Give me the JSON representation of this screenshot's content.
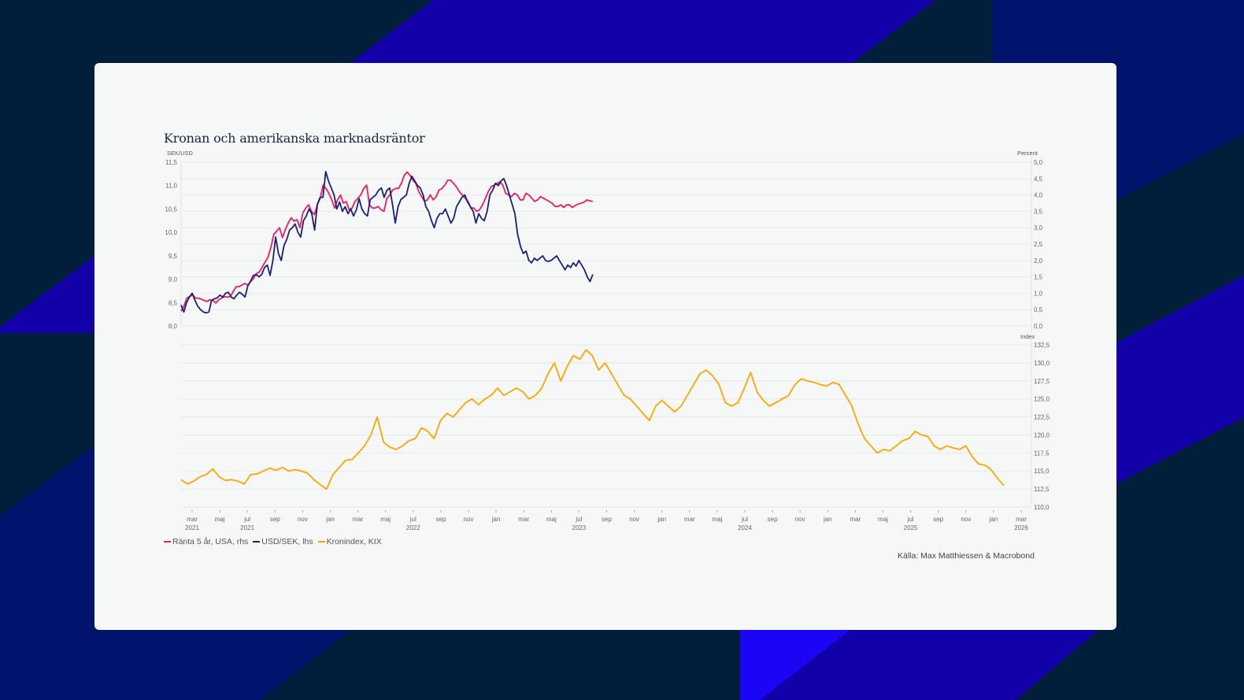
{
  "colors": {
    "background": "#011e3a",
    "band_violet": "#1200a8",
    "band_navy": "#02136e",
    "band_bright": "#1a05f5",
    "card": "#f6f8f8",
    "gridline": "#e6e9ea"
  },
  "chart_data": [
    {
      "type": "line",
      "panel": "top",
      "title": "Kronan och amerikanska marknadsräntor",
      "ylabel_left": "SEK/USD",
      "ylabel_right": "Percent",
      "ylim_left": [
        8.0,
        11.5
      ],
      "ylim_right": [
        0.0,
        5.0
      ],
      "yticks_left": [
        "8,0",
        "8,5",
        "9,0",
        "9,5",
        "10,0",
        "10,5",
        "11,0",
        "11,5"
      ],
      "yticks_right": [
        "0,0",
        "0,5",
        "1,0",
        "1,5",
        "2,0",
        "2,5",
        "3,0",
        "3,5",
        "4,0",
        "4,5",
        "5,0"
      ],
      "grid": true,
      "x_start": "2021-02",
      "x_step_months": 0.5,
      "series": [
        {
          "name": "USD/SEK, lhs",
          "axis": "left",
          "color": "#1a1f7a",
          "values": [
            8.45,
            8.3,
            8.5,
            8.62,
            8.7,
            8.55,
            8.42,
            8.35,
            8.3,
            8.28,
            8.3,
            8.55,
            8.58,
            8.6,
            8.66,
            8.62,
            8.7,
            8.72,
            8.62,
            8.58,
            8.66,
            8.72,
            8.68,
            8.62,
            8.86,
            8.96,
            9.08,
            9.1,
            9.05,
            9.1,
            9.25,
            9.3,
            9.08,
            9.4,
            9.9,
            9.55,
            9.4,
            9.72,
            9.85,
            10.05,
            10.1,
            10.18,
            10.0,
            9.9,
            10.25,
            10.35,
            10.5,
            10.4,
            10.05,
            10.6,
            10.75,
            10.75,
            11.3,
            11.1,
            10.95,
            10.8,
            10.5,
            10.65,
            10.45,
            10.55,
            10.4,
            10.5,
            10.35,
            10.48,
            10.72,
            10.5,
            10.4,
            10.35,
            10.7,
            10.75,
            10.8,
            10.9,
            10.95,
            10.75,
            10.9,
            10.95,
            10.6,
            10.2,
            10.55,
            10.7,
            10.75,
            10.8,
            11.05,
            11.2,
            11.1,
            11.0,
            10.95,
            10.8,
            10.55,
            10.45,
            10.25,
            10.1,
            10.3,
            10.4,
            10.4,
            10.5,
            10.35,
            10.2,
            10.3,
            10.55,
            10.65,
            10.75,
            10.8,
            10.65,
            10.55,
            10.45,
            10.2,
            10.4,
            10.3,
            10.25,
            10.45,
            10.8,
            10.9,
            11.05,
            11.0,
            11.1,
            11.15,
            11.0,
            10.8,
            10.6,
            10.4,
            9.95,
            9.7,
            9.55,
            9.6,
            9.4,
            9.35,
            9.45,
            9.4,
            9.45,
            9.5,
            9.4,
            9.38,
            9.4,
            9.45,
            9.5,
            9.4,
            9.3,
            9.2,
            9.3,
            9.25,
            9.35,
            9.28,
            9.4,
            9.3,
            9.2,
            9.05,
            8.95,
            9.1
          ]
        },
        {
          "name": "Ränta 5 år, USA, rhs",
          "axis": "right",
          "color": "#ee1a62",
          "values": [
            0.45,
            0.6,
            0.85,
            0.9,
            0.95,
            0.85,
            0.85,
            0.82,
            0.78,
            0.75,
            0.8,
            0.78,
            0.7,
            0.8,
            0.85,
            0.9,
            0.88,
            0.9,
            1.05,
            1.2,
            1.2,
            1.25,
            1.3,
            1.25,
            1.35,
            1.45,
            1.6,
            1.65,
            1.8,
            1.95,
            2.1,
            2.4,
            2.8,
            2.9,
            3.0,
            2.7,
            2.95,
            3.15,
            3.3,
            3.2,
            3.25,
            3.0,
            3.45,
            3.6,
            3.7,
            3.5,
            3.4,
            3.7,
            3.9,
            4.3,
            4.2,
            4.05,
            3.85,
            3.6,
            3.85,
            4.0,
            3.75,
            3.8,
            3.55,
            3.6,
            3.8,
            3.9,
            4.0,
            4.2,
            4.3,
            3.7,
            3.6,
            3.6,
            3.65,
            3.55,
            3.5,
            3.9,
            4.0,
            4.15,
            4.2,
            4.2,
            4.35,
            4.6,
            4.7,
            4.6,
            4.45,
            4.35,
            4.1,
            3.95,
            3.8,
            3.85,
            4.0,
            3.85,
            3.95,
            4.15,
            4.2,
            4.3,
            4.45,
            4.45,
            4.35,
            4.25,
            4.1,
            4.0,
            3.9,
            3.8,
            3.6,
            3.6,
            3.5,
            3.55,
            3.7,
            3.9,
            4.1,
            4.25,
            4.3,
            4.35,
            4.4,
            4.3,
            4.05,
            4.0,
            3.95,
            4.05,
            4.0,
            3.85,
            3.85,
            4.05,
            4.0,
            3.9,
            3.8,
            3.85,
            3.95,
            3.9,
            3.85,
            3.8,
            3.75,
            3.65,
            3.65,
            3.7,
            3.62,
            3.7,
            3.7,
            3.62,
            3.68,
            3.72,
            3.75,
            3.78,
            3.85,
            3.82,
            3.8
          ]
        }
      ]
    },
    {
      "type": "line",
      "panel": "bottom",
      "ylabel_right": "Index",
      "ylim": [
        110.0,
        132.5
      ],
      "yticks_right": [
        "110,0",
        "112,5",
        "115,0",
        "117,5",
        "120,0",
        "122,5",
        "125,0",
        "127,5",
        "130,0",
        "132,5"
      ],
      "grid": true,
      "x_start": "2021-02",
      "x_step_months": 0.5,
      "series": [
        {
          "name": "Kronindex, KIX",
          "axis": "right",
          "color": "#ffa500",
          "values": [
            113.8,
            113.2,
            113.6,
            114.2,
            114.5,
            115.3,
            114.2,
            113.7,
            113.8,
            113.6,
            113.2,
            114.5,
            114.6,
            115.0,
            115.4,
            115.1,
            115.5,
            115.0,
            115.2,
            115.0,
            114.7,
            113.8,
            113.1,
            112.5,
            114.5,
            115.5,
            116.5,
            116.6,
            117.5,
            118.5,
            120.0,
            122.5,
            119.0,
            118.3,
            118.0,
            118.5,
            119.2,
            119.5,
            121.0,
            120.5,
            119.5,
            122.0,
            123.0,
            122.5,
            123.5,
            124.5,
            125.0,
            124.2,
            125.0,
            125.5,
            126.5,
            125.5,
            126.0,
            126.5,
            126.0,
            125.0,
            125.5,
            126.5,
            128.5,
            130.0,
            127.5,
            129.5,
            131.0,
            130.5,
            131.8,
            131.0,
            129.0,
            130.0,
            128.5,
            127.0,
            125.5,
            125.0,
            124.0,
            123.0,
            122.0,
            124.0,
            124.8,
            124.0,
            123.2,
            124.0,
            125.5,
            127.0,
            128.5,
            129.0,
            128.2,
            127.0,
            124.5,
            124.0,
            124.5,
            126.5,
            128.7,
            126.0,
            124.8,
            124.0,
            124.5,
            125.0,
            125.5,
            127.0,
            127.8,
            127.5,
            127.3,
            127.0,
            126.8,
            127.3,
            127.0,
            125.5,
            124.0,
            121.5,
            119.5,
            118.5,
            117.5,
            118.0,
            117.8,
            118.5,
            119.2,
            119.5,
            120.5,
            120.0,
            119.8,
            118.5,
            118.0,
            118.5,
            118.2,
            118.0,
            118.5,
            117.0,
            116.0,
            115.8,
            115.2,
            114.0,
            113.0
          ]
        }
      ],
      "x_ticks": [
        {
          "month": "mar",
          "year": "2021"
        },
        {
          "month": "maj",
          "year": ""
        },
        {
          "month": "jul",
          "year": "2021"
        },
        {
          "month": "sep",
          "year": ""
        },
        {
          "month": "nov",
          "year": ""
        },
        {
          "month": "jan",
          "year": ""
        },
        {
          "month": "mar",
          "year": ""
        },
        {
          "month": "maj",
          "year": ""
        },
        {
          "month": "jul",
          "year": "2022"
        },
        {
          "month": "sep",
          "year": ""
        },
        {
          "month": "nov",
          "year": ""
        },
        {
          "month": "jan",
          "year": ""
        },
        {
          "month": "mar",
          "year": ""
        },
        {
          "month": "maj",
          "year": ""
        },
        {
          "month": "jul",
          "year": "2023"
        },
        {
          "month": "sep",
          "year": ""
        },
        {
          "month": "nov",
          "year": ""
        },
        {
          "month": "jan",
          "year": ""
        },
        {
          "month": "mar",
          "year": ""
        },
        {
          "month": "maj",
          "year": ""
        },
        {
          "month": "jul",
          "year": "2024"
        },
        {
          "month": "sep",
          "year": ""
        },
        {
          "month": "nov",
          "year": ""
        },
        {
          "month": "jan",
          "year": ""
        },
        {
          "month": "mar",
          "year": ""
        },
        {
          "month": "maj",
          "year": ""
        },
        {
          "month": "jul",
          "year": "2025"
        },
        {
          "month": "sep",
          "year": ""
        },
        {
          "month": "nov",
          "year": ""
        },
        {
          "month": "jan",
          "year": ""
        },
        {
          "month": "mar",
          "year": "2026"
        }
      ]
    }
  ],
  "legend": [
    {
      "label": "Ränta 5 år, USA, rhs",
      "color": "#ee1a62"
    },
    {
      "label": "USD/SEK, lhs",
      "color": "#1a1f7a"
    },
    {
      "label": "Kronindex, KIX",
      "color": "#ffa500"
    }
  ],
  "title": "Kronan och amerikanska marknadsräntor",
  "source": "Källa: Max Matthiessen & Macrobond"
}
